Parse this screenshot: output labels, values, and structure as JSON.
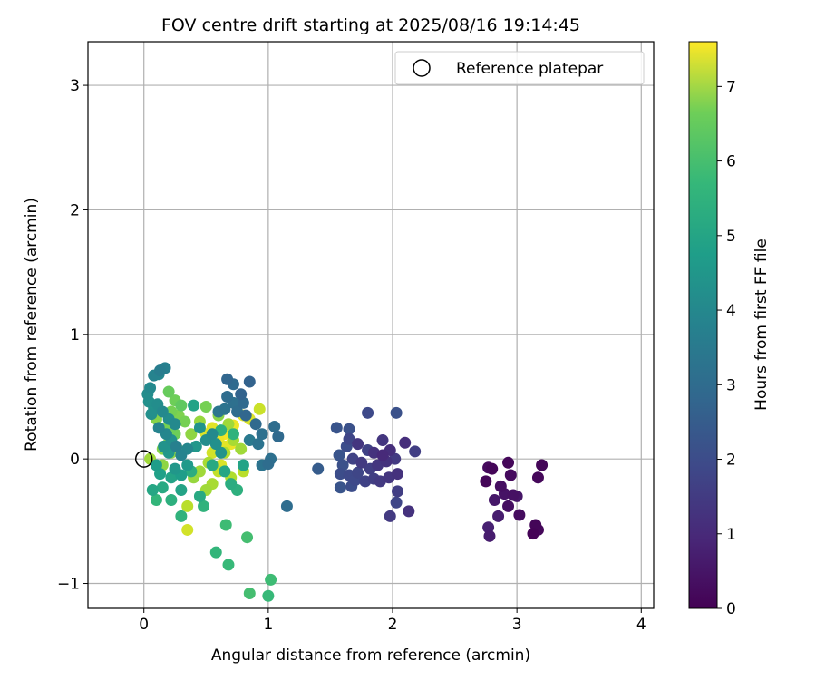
{
  "chart_data": {
    "type": "scatter",
    "title": "FOV centre drift starting at 2025/08/16 19:14:45",
    "xlabel": "Angular distance from reference (arcmin)",
    "ylabel": "Rotation from reference (arcmin)",
    "xlim": [
      -0.45,
      4.1
    ],
    "ylim": [
      -1.2,
      3.35
    ],
    "x_ticks": [
      0,
      1,
      2,
      3,
      4
    ],
    "y_ticks": [
      -1,
      0,
      1,
      2,
      3
    ],
    "x_tick_labels": [
      "0",
      "1",
      "2",
      "3",
      "4"
    ],
    "y_tick_labels": [
      "−1",
      "0",
      "1",
      "2",
      "3"
    ],
    "grid": true,
    "colormap": "viridis",
    "colorbar": {
      "label": "Hours from first FF file",
      "min": 0,
      "max": 7.6,
      "ticks": [
        0,
        1,
        2,
        3,
        4,
        5,
        6,
        7
      ],
      "tick_labels": [
        "0",
        "1",
        "2",
        "3",
        "4",
        "5",
        "6",
        "7"
      ]
    },
    "legend": {
      "position": "top-right",
      "entries": [
        {
          "label": "Reference platepar",
          "marker": "open-circle"
        }
      ]
    },
    "reference_point": {
      "x": 0,
      "y": 0
    },
    "points": [
      {
        "x": 2.75,
        "y": -0.18,
        "t": 0.1
      },
      {
        "x": 2.8,
        "y": -0.08,
        "t": 0.1
      },
      {
        "x": 2.93,
        "y": -0.03,
        "t": 0.15
      },
      {
        "x": 3.2,
        "y": -0.05,
        "t": 0.1
      },
      {
        "x": 3.17,
        "y": -0.15,
        "t": 0.15
      },
      {
        "x": 2.95,
        "y": -0.13,
        "t": 0.2
      },
      {
        "x": 2.87,
        "y": -0.22,
        "t": 0.3
      },
      {
        "x": 2.9,
        "y": -0.28,
        "t": 0.4
      },
      {
        "x": 2.97,
        "y": -0.29,
        "t": 0.35
      },
      {
        "x": 2.82,
        "y": -0.33,
        "t": 0.5
      },
      {
        "x": 2.85,
        "y": -0.46,
        "t": 0.6
      },
      {
        "x": 2.93,
        "y": -0.38,
        "t": 0.3
      },
      {
        "x": 3.02,
        "y": -0.45,
        "t": 0.25
      },
      {
        "x": 3.15,
        "y": -0.53,
        "t": 0.1
      },
      {
        "x": 3.17,
        "y": -0.57,
        "t": 0.15
      },
      {
        "x": 3.13,
        "y": -0.6,
        "t": 0.05
      },
      {
        "x": 2.77,
        "y": -0.55,
        "t": 0.7
      },
      {
        "x": 2.78,
        "y": -0.62,
        "t": 0.6
      },
      {
        "x": 2.77,
        "y": -0.07,
        "t": 0.2
      },
      {
        "x": 3.0,
        "y": -0.3,
        "t": 0.45
      },
      {
        "x": 1.8,
        "y": 0.37,
        "t": 1.7
      },
      {
        "x": 2.03,
        "y": 0.37,
        "t": 1.9
      },
      {
        "x": 1.65,
        "y": 0.24,
        "t": 1.9
      },
      {
        "x": 1.55,
        "y": 0.25,
        "t": 2.0
      },
      {
        "x": 1.92,
        "y": 0.15,
        "t": 1.2
      },
      {
        "x": 2.1,
        "y": 0.13,
        "t": 1.0
      },
      {
        "x": 2.18,
        "y": 0.06,
        "t": 1.4
      },
      {
        "x": 1.65,
        "y": 0.16,
        "t": 1.6
      },
      {
        "x": 1.63,
        "y": 0.1,
        "t": 1.8
      },
      {
        "x": 1.72,
        "y": 0.12,
        "t": 1.2
      },
      {
        "x": 1.8,
        "y": 0.07,
        "t": 1.5
      },
      {
        "x": 1.85,
        "y": 0.05,
        "t": 1.1
      },
      {
        "x": 1.92,
        "y": 0.03,
        "t": 0.9
      },
      {
        "x": 1.98,
        "y": 0.07,
        "t": 1.0
      },
      {
        "x": 2.02,
        "y": 0.0,
        "t": 1.3
      },
      {
        "x": 1.57,
        "y": 0.03,
        "t": 2.0
      },
      {
        "x": 1.6,
        "y": -0.05,
        "t": 1.9
      },
      {
        "x": 1.68,
        "y": 0.0,
        "t": 1.5
      },
      {
        "x": 1.75,
        "y": -0.03,
        "t": 1.3
      },
      {
        "x": 1.82,
        "y": -0.08,
        "t": 1.4
      },
      {
        "x": 1.88,
        "y": -0.05,
        "t": 1.2
      },
      {
        "x": 1.95,
        "y": -0.02,
        "t": 1.1
      },
      {
        "x": 1.58,
        "y": -0.12,
        "t": 1.8
      },
      {
        "x": 1.65,
        "y": -0.13,
        "t": 1.7
      },
      {
        "x": 1.72,
        "y": -0.11,
        "t": 1.6
      },
      {
        "x": 1.78,
        "y": -0.18,
        "t": 1.5
      },
      {
        "x": 1.85,
        "y": -0.16,
        "t": 1.4
      },
      {
        "x": 1.9,
        "y": -0.18,
        "t": 1.3
      },
      {
        "x": 1.97,
        "y": -0.15,
        "t": 1.2
      },
      {
        "x": 2.04,
        "y": -0.12,
        "t": 1.1
      },
      {
        "x": 1.58,
        "y": -0.23,
        "t": 2.0
      },
      {
        "x": 1.67,
        "y": -0.22,
        "t": 1.8
      },
      {
        "x": 2.04,
        "y": -0.26,
        "t": 1.4
      },
      {
        "x": 2.03,
        "y": -0.35,
        "t": 1.6
      },
      {
        "x": 1.98,
        "y": -0.46,
        "t": 1.3
      },
      {
        "x": 2.13,
        "y": -0.42,
        "t": 1.1
      },
      {
        "x": 1.4,
        "y": -0.08,
        "t": 2.2
      },
      {
        "x": 1.7,
        "y": -0.17,
        "t": 1.7
      },
      {
        "x": 0.67,
        "y": 0.64,
        "t": 2.5
      },
      {
        "x": 0.72,
        "y": 0.6,
        "t": 2.6
      },
      {
        "x": 0.85,
        "y": 0.62,
        "t": 2.4
      },
      {
        "x": 0.67,
        "y": 0.5,
        "t": 2.7
      },
      {
        "x": 0.78,
        "y": 0.52,
        "t": 2.4
      },
      {
        "x": 0.8,
        "y": 0.45,
        "t": 2.6
      },
      {
        "x": 0.72,
        "y": 0.45,
        "t": 2.8
      },
      {
        "x": 0.65,
        "y": 0.4,
        "t": 2.9
      },
      {
        "x": 0.6,
        "y": 0.38,
        "t": 3.0
      },
      {
        "x": 0.75,
        "y": 0.38,
        "t": 2.7
      },
      {
        "x": 0.82,
        "y": 0.35,
        "t": 2.5
      },
      {
        "x": 0.9,
        "y": 0.28,
        "t": 2.6
      },
      {
        "x": 0.95,
        "y": 0.2,
        "t": 2.8
      },
      {
        "x": 1.05,
        "y": 0.26,
        "t": 2.7
      },
      {
        "x": 1.08,
        "y": 0.18,
        "t": 2.6
      },
      {
        "x": 0.92,
        "y": 0.12,
        "t": 2.9
      },
      {
        "x": 0.85,
        "y": 0.15,
        "t": 3.1
      },
      {
        "x": 1.02,
        "y": 0.0,
        "t": 2.8
      },
      {
        "x": 1.0,
        "y": -0.04,
        "t": 2.7
      },
      {
        "x": 0.95,
        "y": -0.05,
        "t": 2.9
      },
      {
        "x": 1.15,
        "y": -0.38,
        "t": 2.7
      },
      {
        "x": 0.08,
        "y": 0.67,
        "t": 3.4
      },
      {
        "x": 0.13,
        "y": 0.71,
        "t": 3.2
      },
      {
        "x": 0.17,
        "y": 0.73,
        "t": 3.3
      },
      {
        "x": 0.12,
        "y": 0.68,
        "t": 3.5
      },
      {
        "x": 0.05,
        "y": 0.57,
        "t": 3.6
      },
      {
        "x": 0.03,
        "y": 0.52,
        "t": 3.7
      },
      {
        "x": 0.04,
        "y": 0.46,
        "t": 3.8
      },
      {
        "x": 0.08,
        "y": 0.41,
        "t": 3.9
      },
      {
        "x": 0.06,
        "y": 0.36,
        "t": 3.8
      },
      {
        "x": 0.11,
        "y": 0.44,
        "t": 3.7
      },
      {
        "x": 0.15,
        "y": 0.38,
        "t": 3.6
      },
      {
        "x": 0.2,
        "y": 0.32,
        "t": 3.7
      },
      {
        "x": 0.25,
        "y": 0.28,
        "t": 3.6
      },
      {
        "x": 0.12,
        "y": 0.25,
        "t": 3.4
      },
      {
        "x": 0.18,
        "y": 0.2,
        "t": 3.5
      },
      {
        "x": 0.22,
        "y": 0.15,
        "t": 3.8
      },
      {
        "x": 0.16,
        "y": 0.1,
        "t": 3.9
      },
      {
        "x": 0.2,
        "y": 0.05,
        "t": 4.0
      },
      {
        "x": 0.26,
        "y": 0.1,
        "t": 3.3
      },
      {
        "x": 0.3,
        "y": 0.03,
        "t": 3.4
      },
      {
        "x": 0.35,
        "y": 0.08,
        "t": 3.5
      },
      {
        "x": 0.4,
        "y": 0.43,
        "t": 4.4
      },
      {
        "x": 0.45,
        "y": 0.25,
        "t": 3.9
      },
      {
        "x": 0.5,
        "y": 0.15,
        "t": 3.7
      },
      {
        "x": 0.55,
        "y": 0.2,
        "t": 3.6
      },
      {
        "x": 0.58,
        "y": 0.12,
        "t": 3.8
      },
      {
        "x": 0.62,
        "y": 0.05,
        "t": 3.9
      },
      {
        "x": 0.42,
        "y": 0.1,
        "t": 4.0
      },
      {
        "x": 0.35,
        "y": -0.05,
        "t": 4.1
      },
      {
        "x": 0.25,
        "y": -0.08,
        "t": 4.0
      },
      {
        "x": 0.3,
        "y": -0.13,
        "t": 4.2
      },
      {
        "x": 0.22,
        "y": -0.15,
        "t": 4.4
      },
      {
        "x": 0.1,
        "y": -0.05,
        "t": 4.2
      },
      {
        "x": 0.13,
        "y": -0.12,
        "t": 4.3
      },
      {
        "x": 0.07,
        "y": -0.25,
        "t": 4.5
      },
      {
        "x": 0.15,
        "y": -0.23,
        "t": 4.6
      },
      {
        "x": 0.22,
        "y": -0.33,
        "t": 4.8
      },
      {
        "x": 0.3,
        "y": -0.25,
        "t": 4.4
      },
      {
        "x": 0.45,
        "y": -0.3,
        "t": 4.6
      },
      {
        "x": 0.48,
        "y": -0.38,
        "t": 4.9
      },
      {
        "x": 0.1,
        "y": -0.33,
        "t": 5.0
      },
      {
        "x": 0.3,
        "y": -0.46,
        "t": 4.9
      },
      {
        "x": 0.38,
        "y": -0.1,
        "t": 4.7
      },
      {
        "x": 0.55,
        "y": -0.05,
        "t": 4.6
      },
      {
        "x": 0.65,
        "y": -0.1,
        "t": 4.5
      },
      {
        "x": 0.7,
        "y": -0.2,
        "t": 4.7
      },
      {
        "x": 0.75,
        "y": -0.25,
        "t": 4.8
      },
      {
        "x": 0.8,
        "y": -0.05,
        "t": 4.4
      },
      {
        "x": 0.58,
        "y": -0.75,
        "t": 5.0
      },
      {
        "x": 0.68,
        "y": -0.85,
        "t": 5.1
      },
      {
        "x": 0.66,
        "y": -0.53,
        "t": 5.2
      },
      {
        "x": 0.83,
        "y": -0.63,
        "t": 5.3
      },
      {
        "x": 1.02,
        "y": -0.97,
        "t": 5.2
      },
      {
        "x": 0.85,
        "y": -1.08,
        "t": 5.3
      },
      {
        "x": 1.0,
        "y": -1.1,
        "t": 5.1
      },
      {
        "x": 0.72,
        "y": 0.2,
        "t": 4.9
      },
      {
        "x": 0.62,
        "y": 0.23,
        "t": 4.8
      },
      {
        "x": 0.2,
        "y": 0.54,
        "t": 5.8
      },
      {
        "x": 0.25,
        "y": 0.47,
        "t": 5.9
      },
      {
        "x": 0.3,
        "y": 0.43,
        "t": 5.7
      },
      {
        "x": 0.22,
        "y": 0.38,
        "t": 6.0
      },
      {
        "x": 0.28,
        "y": 0.35,
        "t": 6.1
      },
      {
        "x": 0.33,
        "y": 0.3,
        "t": 6.0
      },
      {
        "x": 0.1,
        "y": 0.32,
        "t": 6.2
      },
      {
        "x": 0.18,
        "y": 0.25,
        "t": 6.0
      },
      {
        "x": 0.25,
        "y": 0.2,
        "t": 5.9
      },
      {
        "x": 0.2,
        "y": 0.13,
        "t": 6.1
      },
      {
        "x": 0.15,
        "y": 0.08,
        "t": 6.2
      },
      {
        "x": 0.22,
        "y": 0.05,
        "t": 6.3
      },
      {
        "x": 0.28,
        "y": 0.07,
        "t": 6.4
      },
      {
        "x": 0.38,
        "y": 0.2,
        "t": 6.3
      },
      {
        "x": 0.5,
        "y": 0.42,
        "t": 6.0
      },
      {
        "x": 0.45,
        "y": 0.3,
        "t": 6.4
      },
      {
        "x": 0.6,
        "y": 0.35,
        "t": 6.2
      },
      {
        "x": 0.68,
        "y": 0.28,
        "t": 6.5
      },
      {
        "x": 0.72,
        "y": 0.15,
        "t": 6.6
      },
      {
        "x": 0.78,
        "y": 0.08,
        "t": 6.5
      },
      {
        "x": 0.65,
        "y": 0.05,
        "t": 6.7
      },
      {
        "x": 0.52,
        "y": -0.03,
        "t": 6.6
      },
      {
        "x": 0.45,
        "y": -0.1,
        "t": 6.5
      },
      {
        "x": 0.4,
        "y": -0.15,
        "t": 6.4
      },
      {
        "x": 0.55,
        "y": -0.2,
        "t": 6.6
      },
      {
        "x": 0.5,
        "y": -0.25,
        "t": 6.5
      },
      {
        "x": 0.35,
        "y": -0.38,
        "t": 6.8
      },
      {
        "x": 0.7,
        "y": -0.15,
        "t": 6.7
      },
      {
        "x": 0.8,
        "y": -0.1,
        "t": 6.8
      },
      {
        "x": 0.15,
        "y": -0.05,
        "t": 6.3
      },
      {
        "x": 0.05,
        "y": 0.0,
        "t": 6.5
      },
      {
        "x": 0.6,
        "y": -0.1,
        "t": 6.9
      },
      {
        "x": 0.85,
        "y": 0.32,
        "t": 7.2
      },
      {
        "x": 0.93,
        "y": 0.4,
        "t": 7.0
      },
      {
        "x": 0.8,
        "y": 0.35,
        "t": 7.3
      },
      {
        "x": 0.72,
        "y": 0.27,
        "t": 7.4
      },
      {
        "x": 0.65,
        "y": 0.2,
        "t": 7.5
      },
      {
        "x": 0.6,
        "y": 0.15,
        "t": 7.4
      },
      {
        "x": 0.55,
        "y": 0.25,
        "t": 7.3
      },
      {
        "x": 0.5,
        "y": 0.2,
        "t": 7.2
      },
      {
        "x": 0.58,
        "y": 0.08,
        "t": 7.5
      },
      {
        "x": 0.65,
        "y": 0.1,
        "t": 7.3
      },
      {
        "x": 0.7,
        "y": 0.12,
        "t": 7.4
      },
      {
        "x": 0.55,
        "y": 0.05,
        "t": 7.1
      },
      {
        "x": 0.62,
        "y": -0.05,
        "t": 7.2
      },
      {
        "x": 0.35,
        "y": -0.57,
        "t": 7.1
      }
    ]
  }
}
